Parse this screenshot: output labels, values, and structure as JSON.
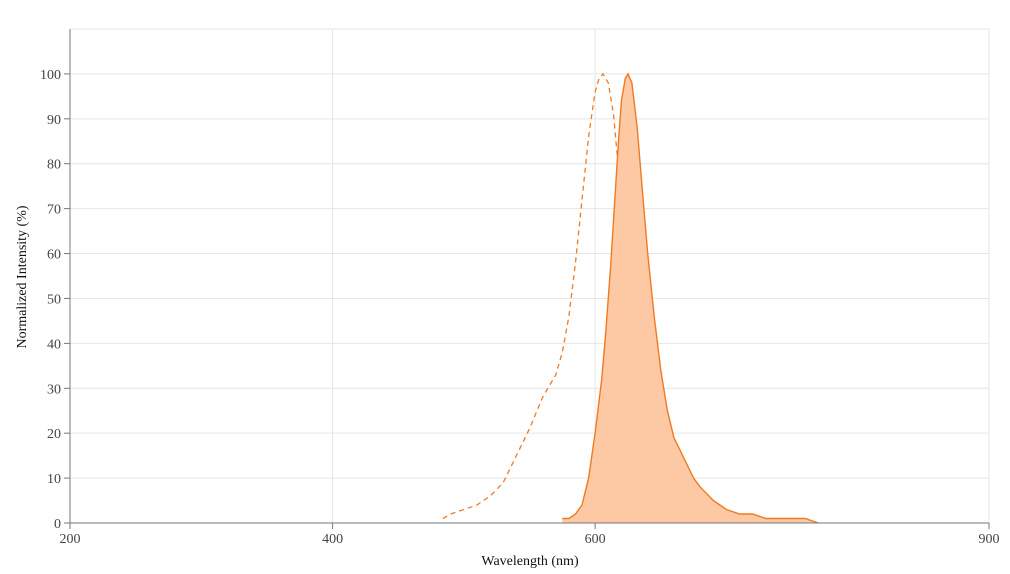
{
  "chart_data": {
    "type": "area",
    "title": "",
    "xlabel": "Wavelength (nm)",
    "ylabel": "Normalized Intensity (%)",
    "xlim": [
      200,
      900
    ],
    "ylim": [
      0,
      110
    ],
    "xticks": [
      200,
      400,
      600,
      900
    ],
    "yticks": [
      0,
      10,
      20,
      30,
      40,
      50,
      60,
      70,
      80,
      90,
      100
    ],
    "grid": true,
    "legend": "none",
    "colors": {
      "line": "#f07a22",
      "fill": "#fcc9a4"
    },
    "series": [
      {
        "style": "dashed",
        "x": [
          484,
          490,
          500,
          510,
          520,
          530,
          540,
          550,
          560,
          570,
          575,
          580,
          585,
          590,
          595,
          600,
          603,
          606,
          610,
          614,
          618,
          620,
          623,
          625,
          628,
          632,
          636,
          640,
          645,
          650,
          655
        ],
        "values": [
          1,
          2,
          3,
          4,
          6,
          9,
          15,
          21,
          28,
          33,
          38,
          46,
          58,
          72,
          86,
          96,
          99,
          100,
          98,
          91,
          78,
          68,
          50,
          38,
          28,
          18,
          11,
          6,
          3,
          1,
          0
        ]
      },
      {
        "style": "solid-filled",
        "x": [
          575,
          580,
          585,
          590,
          595,
          600,
          605,
          608,
          612,
          615,
          618,
          620,
          623,
          625,
          628,
          632,
          636,
          640,
          645,
          650,
          655,
          660,
          665,
          670,
          675,
          680,
          690,
          700,
          710,
          720,
          730,
          740,
          750,
          760,
          770
        ],
        "values": [
          1,
          1,
          2,
          4,
          10,
          20,
          32,
          42,
          58,
          72,
          86,
          94,
          99,
          100,
          98,
          88,
          74,
          60,
          46,
          34,
          25,
          19,
          16,
          13,
          10,
          8,
          5,
          3,
          2,
          2,
          1,
          1,
          1,
          1,
          0
        ]
      }
    ]
  }
}
